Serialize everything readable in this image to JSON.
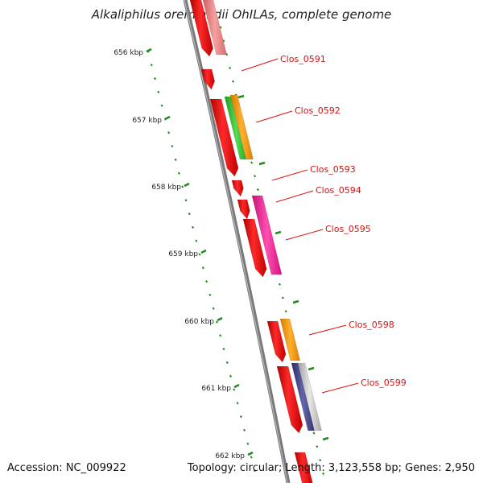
{
  "title": "Alkaliphilus oremlandii OhILAs, complete genome",
  "footer": {
    "accession": "Accession: NC_009922",
    "topology": "Topology: circular; Length: 3,123,558 bp; Genes: 2,950"
  },
  "colors": {
    "backbone": "#808080",
    "tick": "#1f8a1f",
    "label": "#d41212",
    "gene_red": "#ff1a1a",
    "gene_pink": "#f08080",
    "gene_green": "#33cc33",
    "gene_orange": "#ff9900",
    "gene_magenta": "#ff1493",
    "gene_navy": "#444488",
    "gene_grey": "#c0c0c0"
  },
  "kbp_ticks": [
    "656 kbp",
    "657 kbp",
    "658 kbp",
    "659 kbp",
    "660 kbp",
    "661 kbp",
    "662 kbp"
  ],
  "gene_labels": [
    "Clos_0591",
    "Clos_0592",
    "Clos_0593",
    "Clos_0594",
    "Clos_0595",
    "Clos_0598",
    "Clos_0599"
  ]
}
